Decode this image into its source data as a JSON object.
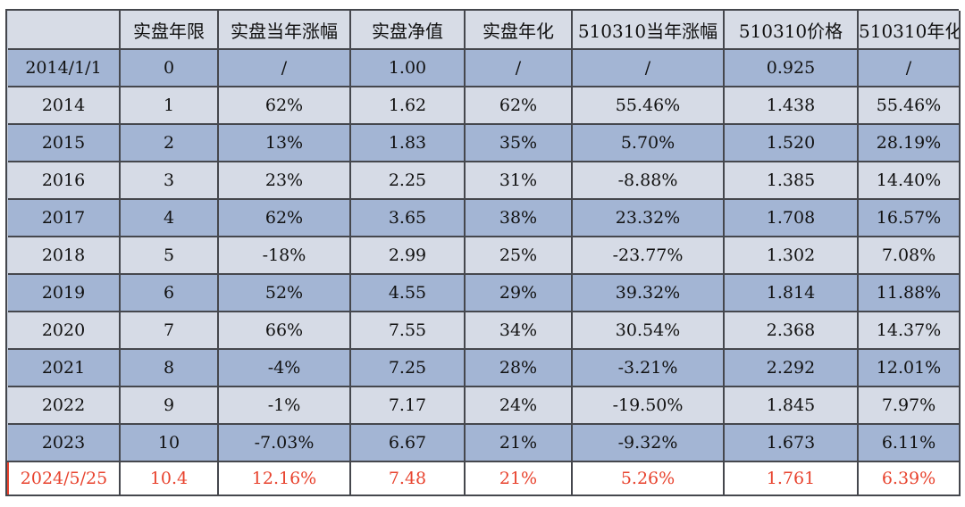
{
  "colors": {
    "header_bg": "#d7dce6",
    "row_light_bg": "#d6dbe6",
    "row_dark_bg": "#a3b5d4",
    "grid_line": "#45474d",
    "highlight_text": "#e8432e"
  },
  "table": {
    "headers": [
      "",
      "实盘年限",
      "实盘当年涨幅",
      "实盘净值",
      "实盘年化",
      "510310当年涨幅",
      "510310价格",
      "510310年化"
    ],
    "rows": [
      [
        "2014/1/1",
        "0",
        "/",
        "1.00",
        "/",
        "/",
        "0.925",
        "/"
      ],
      [
        "2014",
        "1",
        "62%",
        "1.62",
        "62%",
        "55.46%",
        "1.438",
        "55.46%"
      ],
      [
        "2015",
        "2",
        "13%",
        "1.83",
        "35%",
        "5.70%",
        "1.520",
        "28.19%"
      ],
      [
        "2016",
        "3",
        "23%",
        "2.25",
        "31%",
        "-8.88%",
        "1.385",
        "14.40%"
      ],
      [
        "2017",
        "4",
        "62%",
        "3.65",
        "38%",
        "23.32%",
        "1.708",
        "16.57%"
      ],
      [
        "2018",
        "5",
        "-18%",
        "2.99",
        "25%",
        "-23.77%",
        "1.302",
        "7.08%"
      ],
      [
        "2019",
        "6",
        "52%",
        "4.55",
        "29%",
        "39.32%",
        "1.814",
        "11.88%"
      ],
      [
        "2020",
        "7",
        "66%",
        "7.55",
        "34%",
        "30.54%",
        "2.368",
        "14.37%"
      ],
      [
        "2021",
        "8",
        "-4%",
        "7.25",
        "28%",
        "-3.21%",
        "2.292",
        "12.01%"
      ],
      [
        "2022",
        "9",
        "-1%",
        "7.17",
        "24%",
        "-19.50%",
        "1.845",
        "7.97%"
      ],
      [
        "2023",
        "10",
        "-7.03%",
        "6.67",
        "21%",
        "-9.32%",
        "1.673",
        "6.11%"
      ],
      [
        "2024/5/25",
        "10.4",
        "12.16%",
        "7.48",
        "21%",
        "5.26%",
        "1.761",
        "6.39%"
      ]
    ]
  }
}
